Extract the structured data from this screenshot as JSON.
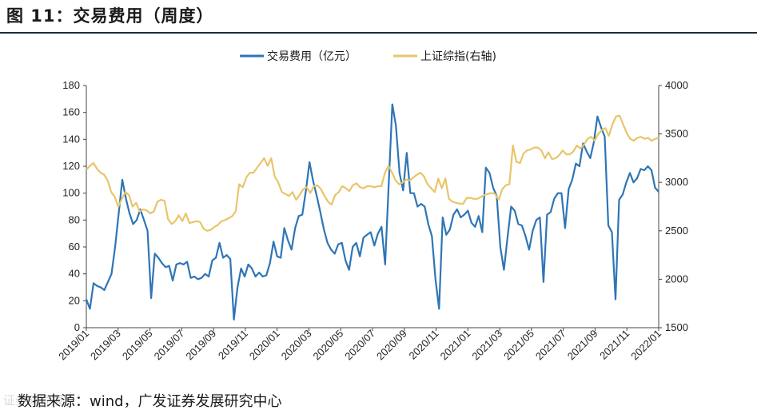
{
  "header": {
    "title": "图 11：交易费用（周度）"
  },
  "footer": {
    "source": "数据来源：wind，广发证券发展研究中心",
    "watermark": "证券研究报告"
  },
  "colors": {
    "fee": "#2e75b6",
    "index": "#e8c56a",
    "axis": "#444444",
    "title_rule": "#1f2d3d"
  },
  "chart_data": {
    "type": "line",
    "title": "",
    "xlabel": "",
    "ylabel": "",
    "ylim": [
      0,
      180
    ],
    "y2lim": [
      1500,
      4000
    ],
    "yticks": [
      "0",
      "20",
      "40",
      "60",
      "80",
      "100",
      "120",
      "140",
      "160",
      "180"
    ],
    "y2ticks": [
      "1500",
      "2000",
      "2500",
      "3000",
      "3500",
      "4000"
    ],
    "xticks": [
      "2019/01",
      "2019/03",
      "2019/05",
      "2019/07",
      "2019/09",
      "2019/11",
      "2020/01",
      "2020/03",
      "2020/05",
      "2020/07",
      "2020/09",
      "2020/11",
      "2021/01",
      "2021/03",
      "2021/05",
      "2021/07",
      "2021/09",
      "2021/11",
      "2022/01"
    ],
    "legend": "top-center",
    "series": [
      {
        "name": "交易费用（亿元）",
        "axis": "left",
        "values": [
          21,
          14,
          33,
          31,
          30,
          28,
          34,
          40,
          60,
          85,
          110,
          96,
          85,
          77,
          80,
          88,
          80,
          72,
          22,
          55,
          52,
          48,
          45,
          46,
          35,
          47,
          48,
          47,
          49,
          37,
          38,
          36,
          37,
          40,
          38,
          50,
          52,
          63,
          52,
          54,
          51,
          6,
          30,
          44,
          38,
          47,
          44,
          38,
          41,
          38,
          39,
          48,
          64,
          53,
          52,
          74,
          65,
          58,
          74,
          83,
          84,
          102,
          123,
          109,
          98,
          86,
          73,
          63,
          58,
          55,
          62,
          63,
          50,
          43,
          60,
          63,
          53,
          67,
          69,
          71,
          61,
          70,
          75,
          47,
          107,
          166,
          150,
          115,
          102,
          130,
          100,
          100,
          90,
          92,
          90,
          77,
          68,
          36,
          14,
          82,
          69,
          73,
          84,
          88,
          82,
          84,
          87,
          78,
          75,
          83,
          71,
          119,
          115,
          104,
          98,
          60,
          43,
          67,
          90,
          87,
          77,
          76,
          68,
          58,
          72,
          80,
          82,
          34,
          84,
          86,
          96,
          100,
          100,
          74,
          103,
          110,
          122,
          120,
          137,
          131,
          126,
          138,
          157,
          149,
          142,
          76,
          71,
          21,
          95,
          99,
          108,
          115,
          108,
          111,
          118,
          117,
          120,
          117,
          104,
          101
        ]
      },
      {
        "name": "上证综指(右轴)",
        "axis": "right",
        "values": [
          3130,
          3170,
          3200,
          3140,
          3100,
          3080,
          3020,
          2900,
          2850,
          2750,
          2830,
          2900,
          2870,
          2750,
          2790,
          2700,
          2720,
          2710,
          2680,
          2700,
          2800,
          2820,
          2810,
          2620,
          2570,
          2600,
          2660,
          2600,
          2680,
          2580,
          2590,
          2600,
          2590,
          2520,
          2500,
          2510,
          2540,
          2560,
          2600,
          2610,
          2630,
          2650,
          2700,
          2980,
          2950,
          3050,
          3100,
          3100,
          3150,
          3200,
          3250,
          3170,
          3250,
          3060,
          3000,
          2900,
          2880,
          2860,
          2900,
          2820,
          2870,
          2930,
          2950,
          2890,
          2960,
          2970,
          2930,
          2860,
          2800,
          2770,
          2870,
          2900,
          2960,
          2940,
          2910,
          2970,
          2990,
          2950,
          2940,
          2960,
          2960,
          2950,
          2960,
          2960,
          3100,
          3170,
          3100,
          3020,
          2980,
          3000,
          3030,
          3020,
          3050,
          3080,
          3100,
          3060,
          2980,
          2940,
          2900,
          3040,
          2940,
          3040,
          2830,
          2800,
          2790,
          2780,
          2780,
          2840,
          2840,
          2830,
          2830,
          2850,
          2870,
          2880,
          2890,
          2880,
          2820,
          2930,
          2970,
          2980,
          3380,
          3210,
          3200,
          3300,
          3330,
          3340,
          3360,
          3360,
          3330,
          3250,
          3310,
          3240,
          3250,
          3280,
          3330,
          3290,
          3290,
          3320,
          3380,
          3350,
          3390,
          3450,
          3470,
          3430,
          3500,
          3540,
          3560,
          3480,
          3600,
          3680,
          3690,
          3600,
          3510,
          3450,
          3430,
          3460,
          3470,
          3450,
          3460,
          3430,
          3450,
          3460
        ]
      }
    ]
  }
}
